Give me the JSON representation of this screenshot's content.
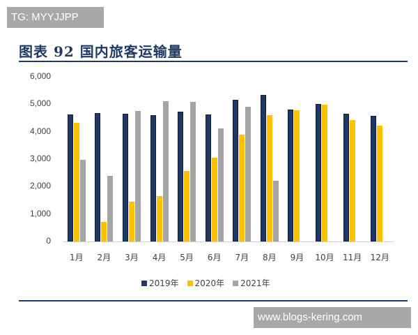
{
  "watermark_top": "TG: MYYJJPP",
  "watermark_bottom": "www.blogs-kering.com",
  "figure_title": "图表 92 国内旅客运输量",
  "colors": {
    "s2019": "#1f3864",
    "s2020": "#ffc000",
    "s2021": "#a5a5a5",
    "accent": "#1f3a64"
  },
  "chart_data": {
    "type": "bar",
    "title": "图表 92 国内旅客运输量",
    "xlabel": "",
    "ylabel": "",
    "ylim": [
      0,
      6000
    ],
    "yticks": [
      "0",
      "1,000",
      "2,000",
      "3,000",
      "4,000",
      "5,000",
      "6,000"
    ],
    "grid": false,
    "legend_position": "bottom",
    "categories": [
      "1月",
      "2月",
      "3月",
      "4月",
      "5月",
      "6月",
      "7月",
      "8月",
      "9月",
      "10月",
      "11月",
      "12月"
    ],
    "series": [
      {
        "name": "2019年",
        "color": "#1f3864",
        "values": [
          4630,
          4690,
          4650,
          4600,
          4740,
          4640,
          5170,
          5330,
          4800,
          5020,
          4660,
          4580
        ]
      },
      {
        "name": "2020年",
        "color": "#ffc000",
        "values": [
          4320,
          700,
          1460,
          1660,
          2570,
          3060,
          3900,
          4590,
          4790,
          4990,
          4420,
          4220
        ]
      },
      {
        "name": "2021年",
        "color": "#a5a5a5",
        "values": [
          2980,
          2380,
          4750,
          5100,
          5080,
          4110,
          4900,
          2210,
          null,
          null,
          null,
          null
        ]
      }
    ]
  }
}
